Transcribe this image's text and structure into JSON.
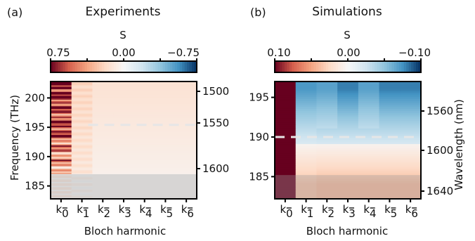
{
  "chart_data": [
    {
      "panel": "(a)",
      "type": "heatmap",
      "title": "Experiments",
      "xlabel": "Bloch harmonic",
      "ylabel": "Frequency (THz)",
      "y2label": "",
      "colorbar": {
        "label": "S",
        "ticks": [
          "0.75",
          "0.00",
          "−0.75"
        ],
        "range": [
          0.75,
          -0.75
        ]
      },
      "x": [
        "k̅",
        "k̅",
        "k̅",
        "k̅",
        "k̅",
        "k̅",
        "k̅"
      ],
      "x_index": [
        "0",
        "1",
        "2",
        "3",
        "4",
        "5",
        "6"
      ],
      "x_categories": [
        "k0",
        "k1",
        "k2",
        "k3",
        "k4",
        "k5",
        "k6"
      ],
      "y_ticks": [
        "185",
        "190",
        "195",
        "200"
      ],
      "ylim": [
        182.8,
        202.8
      ],
      "y2_ticks": [
        "1500",
        "1550",
        "1600"
      ],
      "dashed_line_at": 195.4,
      "shaded_region_below": 187.0,
      "rows_top_to_bottom_sample": [
        [
          0.62,
          0.22,
          0.12,
          0.11,
          0.11,
          0.11,
          0.11
        ],
        [
          0.48,
          0.18,
          0.1,
          0.1,
          0.1,
          0.1,
          0.1
        ],
        [
          0.35,
          0.14,
          0.08,
          0.08,
          0.08,
          0.08,
          0.08
        ],
        [
          0.2,
          0.08,
          0.05,
          0.05,
          0.05,
          0.05,
          0.05
        ],
        [
          0.05,
          0.02,
          0.01,
          0.01,
          0.01,
          0.01,
          0.01
        ]
      ]
    },
    {
      "panel": "(b)",
      "type": "heatmap",
      "title": "Simulations",
      "xlabel": "Bloch harmonic",
      "ylabel": "",
      "y2label": "Wavelength (nm)",
      "colorbar": {
        "label": "S",
        "ticks": [
          "0.10",
          "0.00",
          "−0.10"
        ],
        "range": [
          0.1,
          -0.1
        ]
      },
      "x_index": [
        "0",
        "1",
        "2",
        "3",
        "4",
        "5",
        "6"
      ],
      "x_categories": [
        "k0",
        "k1",
        "k2",
        "k3",
        "k4",
        "k5",
        "k6"
      ],
      "y_ticks": [
        "185",
        "190",
        "195"
      ],
      "ylim": [
        182.2,
        197.0
      ],
      "y2_ticks": [
        "1560",
        "1600",
        "1640"
      ],
      "dashed_line_at": 190.0,
      "shaded_region_below": 185.2,
      "rows_top_to_bottom_sample": [
        [
          0.1,
          -0.08,
          -0.07,
          -0.07,
          -0.07,
          -0.07,
          -0.07
        ],
        [
          0.1,
          -0.05,
          -0.04,
          -0.04,
          -0.04,
          -0.04,
          -0.04
        ],
        [
          0.1,
          -0.01,
          -0.01,
          -0.01,
          -0.01,
          -0.01,
          -0.01
        ],
        [
          0.1,
          0.02,
          0.02,
          0.02,
          0.02,
          0.02,
          0.02
        ],
        [
          0.1,
          0.04,
          0.03,
          0.03,
          0.03,
          0.03,
          0.03
        ]
      ]
    }
  ]
}
